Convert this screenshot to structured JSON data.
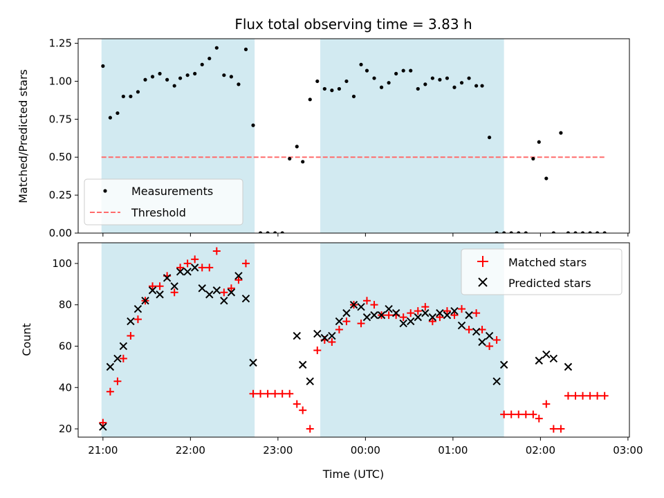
{
  "colors": {
    "span_fill": "#add8e6",
    "measurement": "#000000",
    "threshold": "#ff6b6b",
    "matched": "#ff0000",
    "predicted": "#000000"
  },
  "chart_data": [
    {
      "type": "scatter",
      "title": "Flux total observing time = 3.83 h",
      "xlabel": "",
      "ylabel": "Matched/Predicted stars",
      "xlim": [
        "20:43",
        "03:01"
      ],
      "ylim": [
        0,
        1.28
      ],
      "yticks": [
        "0.00",
        "0.25",
        "0.50",
        "0.75",
        "1.00",
        "1.25"
      ],
      "observing_spans": [
        [
          "20:59",
          "22:44"
        ],
        [
          "23:29",
          "01:35"
        ]
      ],
      "legend_position": "lower-left",
      "series": [
        {
          "name": "Measurements",
          "kind": "points",
          "x": [
            "21:00",
            "21:05",
            "21:10",
            "21:14",
            "21:19",
            "21:24",
            "21:29",
            "21:34",
            "21:39",
            "21:44",
            "21:49",
            "21:53",
            "21:58",
            "22:03",
            "22:08",
            "22:13",
            "22:18",
            "22:23",
            "22:28",
            "22:33",
            "22:38",
            "22:43",
            "22:48",
            "22:53",
            "22:58",
            "23:03",
            "23:08",
            "23:13",
            "23:17",
            "23:22",
            "23:27",
            "23:32",
            "23:37",
            "23:42",
            "23:47",
            "23:52",
            "23:57",
            "00:01",
            "00:06",
            "00:11",
            "00:16",
            "00:21",
            "00:26",
            "00:31",
            "00:36",
            "00:41",
            "00:46",
            "00:51",
            "00:56",
            "01:01",
            "01:06",
            "01:11",
            "01:16",
            "01:20",
            "01:25",
            "01:30",
            "01:35",
            "01:40",
            "01:45",
            "01:50",
            "01:55",
            "01:59",
            "02:04",
            "02:09",
            "02:14",
            "02:19",
            "02:24",
            "02:29",
            "02:34",
            "02:39",
            "02:44"
          ],
          "y": [
            1.1,
            0.76,
            0.79,
            0.9,
            0.9,
            0.93,
            1.01,
            1.03,
            1.05,
            1.01,
            0.97,
            1.02,
            1.04,
            1.05,
            1.11,
            1.15,
            1.22,
            1.04,
            1.03,
            0.98,
            1.21,
            0.71,
            0.0,
            0.0,
            0.0,
            0.0,
            0.49,
            0.57,
            0.47,
            0.88,
            1.0,
            0.95,
            0.94,
            0.95,
            1.0,
            0.9,
            1.11,
            1.07,
            1.02,
            0.96,
            0.99,
            1.05,
            1.07,
            1.07,
            0.95,
            0.98,
            1.02,
            1.01,
            1.02,
            0.96,
            0.99,
            1.02,
            0.97,
            0.97,
            0.63,
            0.0,
            0.0,
            0.0,
            0.0,
            0.0,
            0.49,
            0.6,
            0.36,
            0.0,
            0.66,
            0.0,
            0.0,
            0.0,
            0.0,
            0.0,
            0.0
          ]
        },
        {
          "name": "Threshold",
          "kind": "dashed-line",
          "x": [
            "20:59",
            "02:44"
          ],
          "y": [
            0.5,
            0.5
          ]
        }
      ]
    },
    {
      "type": "scatter",
      "title": "",
      "xlabel": "Time (UTC)",
      "ylabel": "Count",
      "xlim": [
        "20:43",
        "03:01"
      ],
      "ylim": [
        16,
        110
      ],
      "xticks": [
        "21:00",
        "22:00",
        "23:00",
        "00:00",
        "01:00",
        "02:00",
        "03:00"
      ],
      "yticks": [
        "20",
        "40",
        "60",
        "80",
        "100"
      ],
      "observing_spans": [
        [
          "20:59",
          "22:44"
        ],
        [
          "23:29",
          "01:35"
        ]
      ],
      "legend_position": "upper-right",
      "series": [
        {
          "name": "Matched stars",
          "kind": "plus",
          "x": [
            "21:00",
            "21:05",
            "21:10",
            "21:14",
            "21:19",
            "21:24",
            "21:29",
            "21:34",
            "21:39",
            "21:44",
            "21:49",
            "21:53",
            "21:58",
            "22:03",
            "22:08",
            "22:13",
            "22:18",
            "22:23",
            "22:28",
            "22:33",
            "22:38",
            "22:43",
            "22:48",
            "22:53",
            "22:58",
            "23:03",
            "23:08",
            "23:13",
            "23:17",
            "23:22",
            "23:27",
            "23:32",
            "23:37",
            "23:42",
            "23:47",
            "23:52",
            "23:57",
            "00:01",
            "00:06",
            "00:11",
            "00:16",
            "00:21",
            "00:26",
            "00:31",
            "00:36",
            "00:41",
            "00:46",
            "00:51",
            "00:56",
            "01:01",
            "01:06",
            "01:11",
            "01:16",
            "01:20",
            "01:25",
            "01:30",
            "01:35",
            "01:40",
            "01:45",
            "01:50",
            "01:55",
            "01:59",
            "02:04",
            "02:09",
            "02:14",
            "02:19",
            "02:24",
            "02:29",
            "02:34",
            "02:39",
            "02:44"
          ],
          "y": [
            23,
            38,
            43,
            54,
            65,
            73,
            82,
            89,
            89,
            94,
            86,
            98,
            100,
            102,
            98,
            98,
            106,
            86,
            88,
            92,
            100,
            37,
            37,
            37,
            37,
            37,
            37,
            32,
            29,
            20,
            58,
            63,
            62,
            68,
            72,
            80,
            71,
            82,
            80,
            75,
            75,
            75,
            74,
            76,
            77,
            79,
            72,
            74,
            77,
            75,
            78,
            68,
            76,
            68,
            60,
            63,
            27,
            27,
            27,
            27,
            27,
            25,
            32,
            20,
            20,
            36,
            36,
            36,
            36,
            36,
            36
          ]
        },
        {
          "name": "Predicted stars",
          "kind": "x",
          "x": [
            "21:00",
            "21:05",
            "21:10",
            "21:14",
            "21:19",
            "21:24",
            "21:29",
            "21:34",
            "21:39",
            "21:44",
            "21:49",
            "21:53",
            "21:58",
            "22:03",
            "22:08",
            "22:13",
            "22:18",
            "22:23",
            "22:28",
            "22:33",
            "22:38",
            "22:43",
            "23:13",
            "23:17",
            "23:22",
            "23:27",
            "23:32",
            "23:37",
            "23:42",
            "23:47",
            "23:52",
            "23:57",
            "00:01",
            "00:06",
            "00:11",
            "00:16",
            "00:21",
            "00:26",
            "00:31",
            "00:36",
            "00:41",
            "00:46",
            "00:51",
            "00:56",
            "01:01",
            "01:06",
            "01:11",
            "01:16",
            "01:20",
            "01:25",
            "01:30",
            "01:35",
            "01:59",
            "02:04",
            "02:09",
            "02:19"
          ],
          "y": [
            21,
            50,
            54,
            60,
            72,
            78,
            82,
            87,
            85,
            93,
            89,
            96,
            96,
            98,
            88,
            85,
            87,
            82,
            86,
            94,
            83,
            52,
            65,
            51,
            43,
            66,
            64,
            65,
            72,
            76,
            80,
            79,
            74,
            75,
            75,
            78,
            76,
            71,
            72,
            74,
            76,
            74,
            76,
            75,
            77,
            70,
            75,
            67,
            62,
            65,
            43,
            51,
            53,
            56,
            54,
            50
          ]
        }
      ]
    }
  ]
}
